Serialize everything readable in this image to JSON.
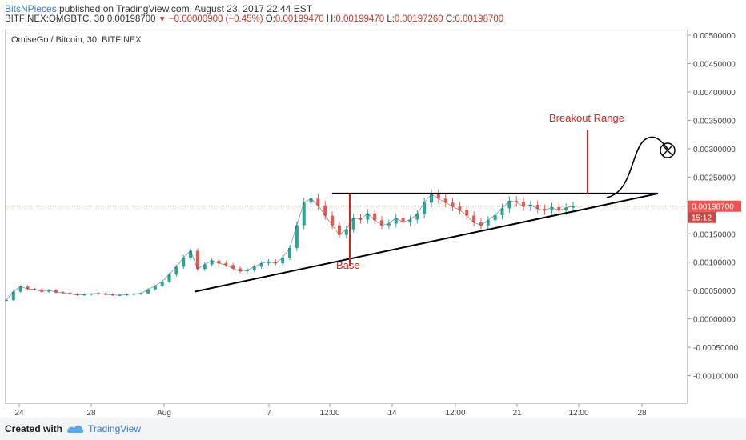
{
  "header": {
    "author": "BitsNPieces",
    "published": "published on TradingView.com, August 23, 2017 22:44 EST",
    "symbol": "BITFINEX:OMGBTC, 30",
    "last": "0.00198700",
    "change": "−0.00000900 (−0.45%)",
    "o_label": "O:",
    "o": "0.00199470",
    "h_label": "H:",
    "h": "0.00199470",
    "l_label": "L:",
    "l": "0.00197260",
    "c_label": "C:",
    "c": "0.00198700"
  },
  "footer": {
    "created_with": "Created with",
    "brand": "TradingView"
  },
  "chart_data": {
    "type": "line",
    "title": "OmiseGo / Bitcoin, 30, BITFINEX",
    "xlabel": "",
    "ylabel": "",
    "ylim": [
      -0.0015,
      0.0051
    ],
    "x_ticks": [
      "24",
      "28",
      "Aug",
      "7",
      "12:00",
      "14",
      "12:00",
      "21",
      "12:00",
      "28"
    ],
    "y_ticks": [
      "0.00500000",
      "0.00450000",
      "0.00400000",
      "0.00350000",
      "0.00300000",
      "0.00250000",
      "0.00150000",
      "0.00100000",
      "0.00050000",
      "0.00000000",
      "-0.00050000",
      "-0.00100000"
    ],
    "current_price_label": "0.00198700",
    "countdown_label": "15:12",
    "colors": {
      "up": "#26a69a",
      "down": "#ef5350",
      "annotation": "#e02020",
      "line": "#000000",
      "price_line": "#e08a6a",
      "price_label_bg": "#ef5350"
    },
    "series": [
      {
        "name": "OMGBTC",
        "values": [
          0.00033,
          0.00048,
          0.00057,
          0.00053,
          0.00052,
          0.00048,
          0.00051,
          0.00047,
          0.00046,
          0.00044,
          0.00042,
          0.00043,
          0.00044,
          0.00045,
          0.00043,
          0.00042,
          0.00042,
          0.00043,
          0.00044,
          0.00045,
          0.00052,
          0.00058,
          0.00066,
          0.00078,
          0.00092,
          0.00108,
          0.0012,
          0.00088,
          0.00096,
          0.00103,
          0.00098,
          0.00095,
          0.00089,
          0.00084,
          0.00086,
          0.00092,
          0.00098,
          0.00101,
          0.00098,
          0.00108,
          0.00125,
          0.00165,
          0.00205,
          0.00212,
          0.002,
          0.00182,
          0.00165,
          0.00148,
          0.00158,
          0.00178,
          0.00175,
          0.00186,
          0.00174,
          0.00165,
          0.00168,
          0.00178,
          0.0017,
          0.00175,
          0.00185,
          0.00205,
          0.0022,
          0.00212,
          0.00205,
          0.00198,
          0.00192,
          0.00182,
          0.0017,
          0.00165,
          0.00174,
          0.00183,
          0.00195,
          0.00208,
          0.00206,
          0.00198,
          0.00201,
          0.00194,
          0.00191,
          0.00197,
          0.00191,
          0.00196,
          0.001987
        ]
      }
    ],
    "annotations": [
      {
        "type": "text",
        "text": "Base"
      },
      {
        "type": "text",
        "text": "Breakout Range"
      }
    ],
    "trendlines": {
      "resistance": [
        0.00221,
        0.00221
      ],
      "support": [
        0.00048,
        0.00221
      ],
      "breakout_top": 0.00333
    }
  }
}
